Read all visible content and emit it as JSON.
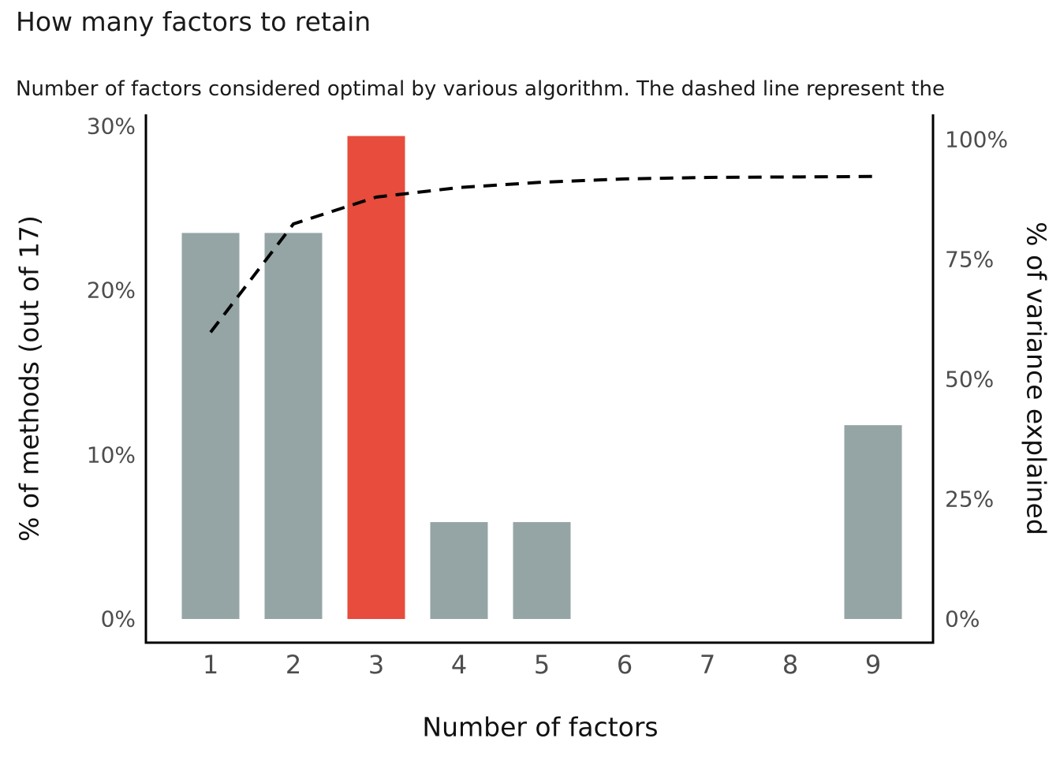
{
  "title": "How many factors to retain",
  "subtitle": "Number of factors considered optimal by various algorithm. The dashed line represent the",
  "chart_data": {
    "type": "bar",
    "title": "How many factors to retain",
    "subtitle": "Number of factors considered optimal by various algorithm. The dashed line represent the",
    "xlabel": "Number of factors",
    "ylabel_left": "% of methods (out of 17)",
    "ylabel_right": "% of variance explained",
    "categories": [
      "1",
      "2",
      "3",
      "4",
      "5",
      "6",
      "7",
      "8",
      "9"
    ],
    "series": [
      {
        "name": "% of methods (out of 17)",
        "type": "bar",
        "axis": "left",
        "values": [
          23.5,
          23.5,
          29.4,
          5.9,
          5.9,
          0,
          0,
          0,
          11.8
        ]
      },
      {
        "name": "% of variance explained",
        "type": "line",
        "style": "dashed",
        "axis": "right",
        "values": [
          59.8,
          82.4,
          88.0,
          90.0,
          91.1,
          91.8,
          92.1,
          92.2,
          92.3
        ]
      }
    ],
    "highlight_category": "3",
    "left_axis": {
      "tick_labels": [
        "0%",
        "10%",
        "20%",
        "30%"
      ],
      "tick_values": [
        0,
        10,
        20,
        30
      ],
      "range": [
        0,
        30
      ]
    },
    "right_axis": {
      "tick_labels": [
        "0%",
        "25%",
        "50%",
        "75%",
        "100%"
      ],
      "tick_values": [
        0,
        25,
        50,
        75,
        100
      ],
      "range": [
        0,
        100
      ]
    },
    "grid": false,
    "legend": "none",
    "colors": {
      "bar": "#95a5a6",
      "bar_highlight": "#e74c3c",
      "line": "#000000",
      "axis": "#000000",
      "tick_label": "#4d4d4d",
      "text": "#1a1a1a"
    }
  }
}
